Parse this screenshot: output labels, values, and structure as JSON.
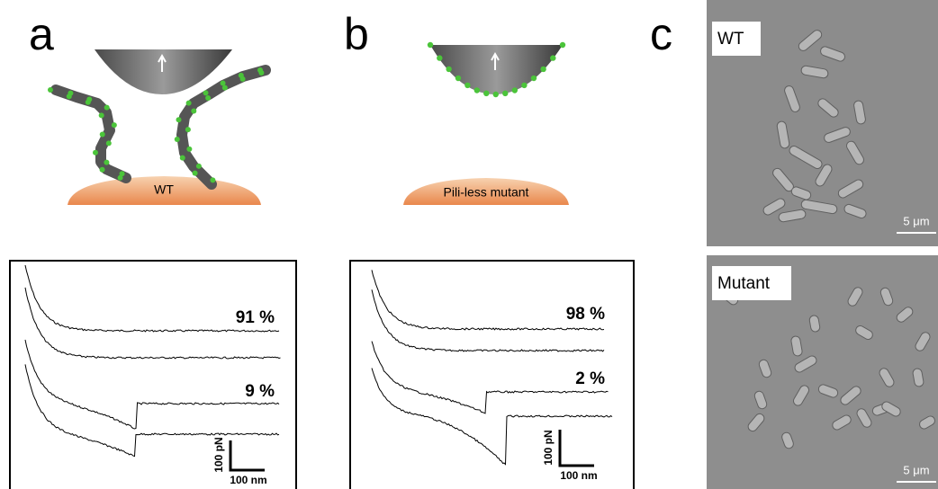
{
  "panel_a": {
    "label": "a",
    "surface_label": "WT",
    "percentages": [
      "91 %",
      "9 %"
    ],
    "scale_force": "100 pN",
    "scale_distance": "100 nm"
  },
  "panel_b": {
    "label": "b",
    "surface_label": "Pili-less mutant",
    "percentages": [
      "98 %",
      "2 %"
    ],
    "scale_force": "100 pN",
    "scale_distance": "100 nm"
  },
  "panel_c": {
    "label": "c",
    "images": [
      {
        "label": "WT",
        "scale_bar": "5 μm"
      },
      {
        "label": "Mutant",
        "scale_bar": "5 μm"
      }
    ]
  }
}
